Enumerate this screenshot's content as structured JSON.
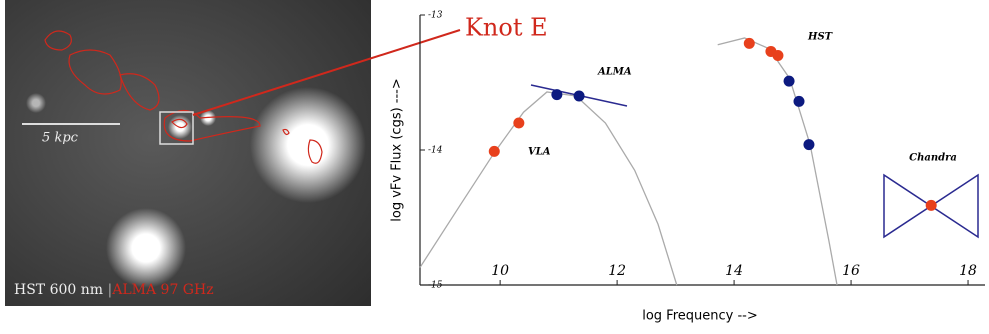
{
  "image": {
    "scale_label": "5 kpc",
    "caption_hst": "HST 600 nm",
    "caption_separator": "|",
    "caption_alma": "ALMA 97 GHz",
    "callout": "Knot E"
  },
  "chart_data": {
    "type": "scatter",
    "x_label": "log Frequency -->",
    "y_label": "log  vFv  Flux  (cgs)  --->",
    "annotations": [
      "VLA",
      "ALMA",
      "HST",
      "Chandra"
    ],
    "xlim": [
      8.63,
      18.29
    ],
    "ylim": [
      -15,
      -13
    ],
    "xticks": [
      10,
      12,
      14,
      16,
      18
    ],
    "yticks": [
      -15,
      -14,
      -13
    ],
    "series": [
      {
        "color": "#e8401c",
        "x": [
          9.9,
          10.32,
          14.26,
          14.63,
          14.75,
          17.37
        ],
        "values": [
          -14.01,
          -13.8,
          -13.21,
          -13.27,
          -13.3,
          -14.41
        ]
      },
      {
        "color": "#0c1a80",
        "x": [
          10.97,
          11.35,
          14.94,
          15.11,
          15.28
        ],
        "values": [
          -13.59,
          -13.6,
          -13.49,
          -13.64,
          -13.96
        ]
      }
    ],
    "curves": [
      {
        "color": "#aaaaaa",
        "x": [
          8.63,
          9.3,
          9.9,
          10.4,
          10.8,
          11.3,
          11.8,
          12.3,
          12.7,
          13.02
        ],
        "values": [
          -14.87,
          -14.42,
          -14.02,
          -13.72,
          -13.57,
          -13.6,
          -13.8,
          -14.15,
          -14.55,
          -15
        ]
      },
      {
        "color": "#aaaaaa",
        "x": [
          13.72,
          14.18,
          14.6,
          14.95,
          15.3,
          15.62,
          15.76
        ],
        "values": [
          -13.22,
          -13.17,
          -13.25,
          -13.47,
          -13.96,
          -14.67,
          -15
        ]
      }
    ]
  }
}
